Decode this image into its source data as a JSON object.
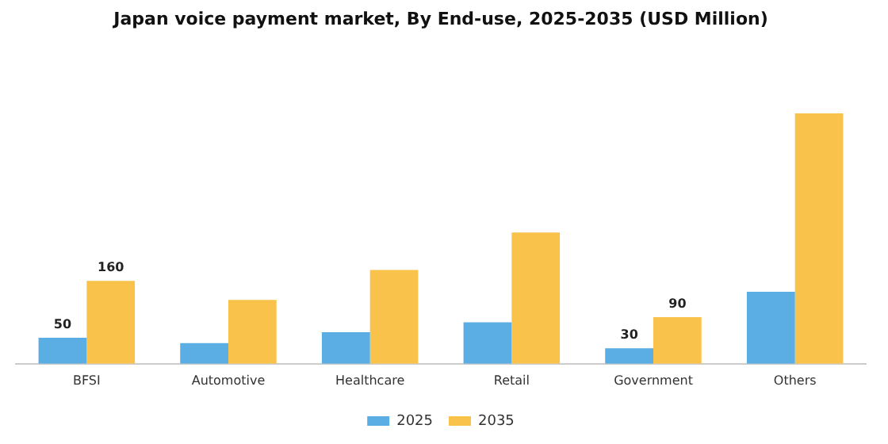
{
  "chart_data": {
    "type": "bar",
    "title": "Japan voice payment market, By End-use, 2025-2035 (USD Million)",
    "categories": [
      "BFSI",
      "Automotive",
      "Healthcare",
      "Retail",
      "Government",
      "Others"
    ],
    "series": [
      {
        "name": "2025",
        "color": "#5aaee3",
        "values": [
          50,
          40,
          61,
          80,
          30,
          139
        ],
        "value_labels": [
          "50",
          null,
          null,
          null,
          "30",
          null
        ]
      },
      {
        "name": "2035",
        "color": "#f9c24b",
        "values": [
          160,
          123,
          181,
          253,
          90,
          483
        ],
        "value_labels": [
          "160",
          null,
          null,
          null,
          "90",
          null
        ]
      }
    ],
    "legend": "bottom",
    "grid": false
  }
}
